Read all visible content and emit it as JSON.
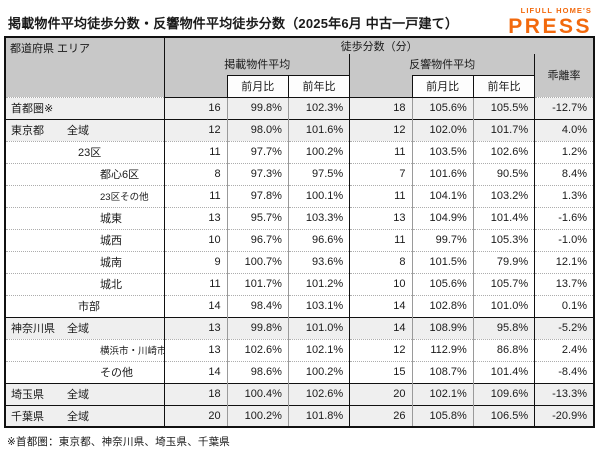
{
  "title": "掲載物件平均徒歩分数・反響物件平均徒歩分数（2025年6月 中古一戸建て）",
  "logo": {
    "top": "LIFULL HOME'S",
    "main": "PRESS",
    "color": "#f2690d"
  },
  "footnote": "※首都圏：東京都、神奈川県、埼玉県、千葉県",
  "table": {
    "header": {
      "area": "都道府県 エリア",
      "group": "徒歩分数（分）",
      "listed": "掲載物件平均",
      "inquiry": "反響物件平均",
      "mom": "前月比",
      "yoy": "前年比",
      "divergence": "乖離率"
    },
    "rows": [
      {
        "pref": "首都圏※",
        "area": "",
        "indent": 0,
        "shaded": true,
        "small": false,
        "group_start": false,
        "values": [
          "16",
          "99.8%",
          "102.3%",
          "18",
          "105.6%",
          "105.5%",
          "-12.7%"
        ]
      },
      {
        "pref": "東京都",
        "area": "全域",
        "indent": 1,
        "shaded": true,
        "small": false,
        "group_start": true,
        "values": [
          "12",
          "98.0%",
          "101.6%",
          "12",
          "102.0%",
          "101.7%",
          "4.0%"
        ]
      },
      {
        "pref": "",
        "area": "23区",
        "indent": 2,
        "shaded": false,
        "small": false,
        "group_start": false,
        "values": [
          "11",
          "97.7%",
          "100.2%",
          "11",
          "103.5%",
          "102.6%",
          "1.2%"
        ]
      },
      {
        "pref": "",
        "area": "都心6区",
        "indent": 3,
        "shaded": false,
        "small": false,
        "group_start": false,
        "values": [
          "8",
          "97.3%",
          "97.5%",
          "7",
          "101.6%",
          "90.5%",
          "8.4%"
        ]
      },
      {
        "pref": "",
        "area": "23区その他",
        "indent": 3,
        "shaded": false,
        "small": true,
        "group_start": false,
        "values": [
          "11",
          "97.8%",
          "100.1%",
          "11",
          "104.1%",
          "103.2%",
          "1.3%"
        ]
      },
      {
        "pref": "",
        "area": "城東",
        "indent": 3,
        "shaded": false,
        "small": false,
        "group_start": false,
        "values": [
          "13",
          "95.7%",
          "103.3%",
          "13",
          "104.9%",
          "101.4%",
          "-1.6%"
        ]
      },
      {
        "pref": "",
        "area": "城西",
        "indent": 3,
        "shaded": false,
        "small": false,
        "group_start": false,
        "values": [
          "10",
          "96.7%",
          "96.6%",
          "11",
          "99.7%",
          "105.3%",
          "-1.0%"
        ]
      },
      {
        "pref": "",
        "area": "城南",
        "indent": 3,
        "shaded": false,
        "small": false,
        "group_start": false,
        "values": [
          "9",
          "100.7%",
          "93.6%",
          "8",
          "101.5%",
          "79.9%",
          "12.1%"
        ]
      },
      {
        "pref": "",
        "area": "城北",
        "indent": 3,
        "shaded": false,
        "small": false,
        "group_start": false,
        "values": [
          "11",
          "101.7%",
          "101.2%",
          "10",
          "105.6%",
          "105.7%",
          "13.7%"
        ]
      },
      {
        "pref": "",
        "area": "市部",
        "indent": 2,
        "shaded": false,
        "small": false,
        "group_start": false,
        "values": [
          "14",
          "98.4%",
          "103.1%",
          "14",
          "102.8%",
          "101.0%",
          "0.1%"
        ]
      },
      {
        "pref": "神奈川県",
        "area": "全域",
        "indent": 1,
        "shaded": true,
        "small": false,
        "group_start": true,
        "values": [
          "13",
          "99.8%",
          "101.0%",
          "14",
          "108.9%",
          "95.8%",
          "-5.2%"
        ]
      },
      {
        "pref": "",
        "area": "横浜市・川崎市",
        "indent": 3,
        "shaded": false,
        "small": true,
        "group_start": false,
        "values": [
          "13",
          "102.6%",
          "102.1%",
          "12",
          "112.9%",
          "86.8%",
          "2.4%"
        ]
      },
      {
        "pref": "",
        "area": "その他",
        "indent": 3,
        "shaded": false,
        "small": false,
        "group_start": false,
        "values": [
          "14",
          "98.6%",
          "100.2%",
          "15",
          "108.7%",
          "101.4%",
          "-8.4%"
        ]
      },
      {
        "pref": "埼玉県",
        "area": "全域",
        "indent": 1,
        "shaded": true,
        "small": false,
        "group_start": true,
        "values": [
          "18",
          "100.4%",
          "102.6%",
          "20",
          "102.1%",
          "109.6%",
          "-13.3%"
        ]
      },
      {
        "pref": "千葉県",
        "area": "全域",
        "indent": 1,
        "shaded": true,
        "small": false,
        "group_start": true,
        "values": [
          "20",
          "100.2%",
          "101.8%",
          "26",
          "105.8%",
          "106.5%",
          "-20.9%"
        ]
      }
    ]
  }
}
